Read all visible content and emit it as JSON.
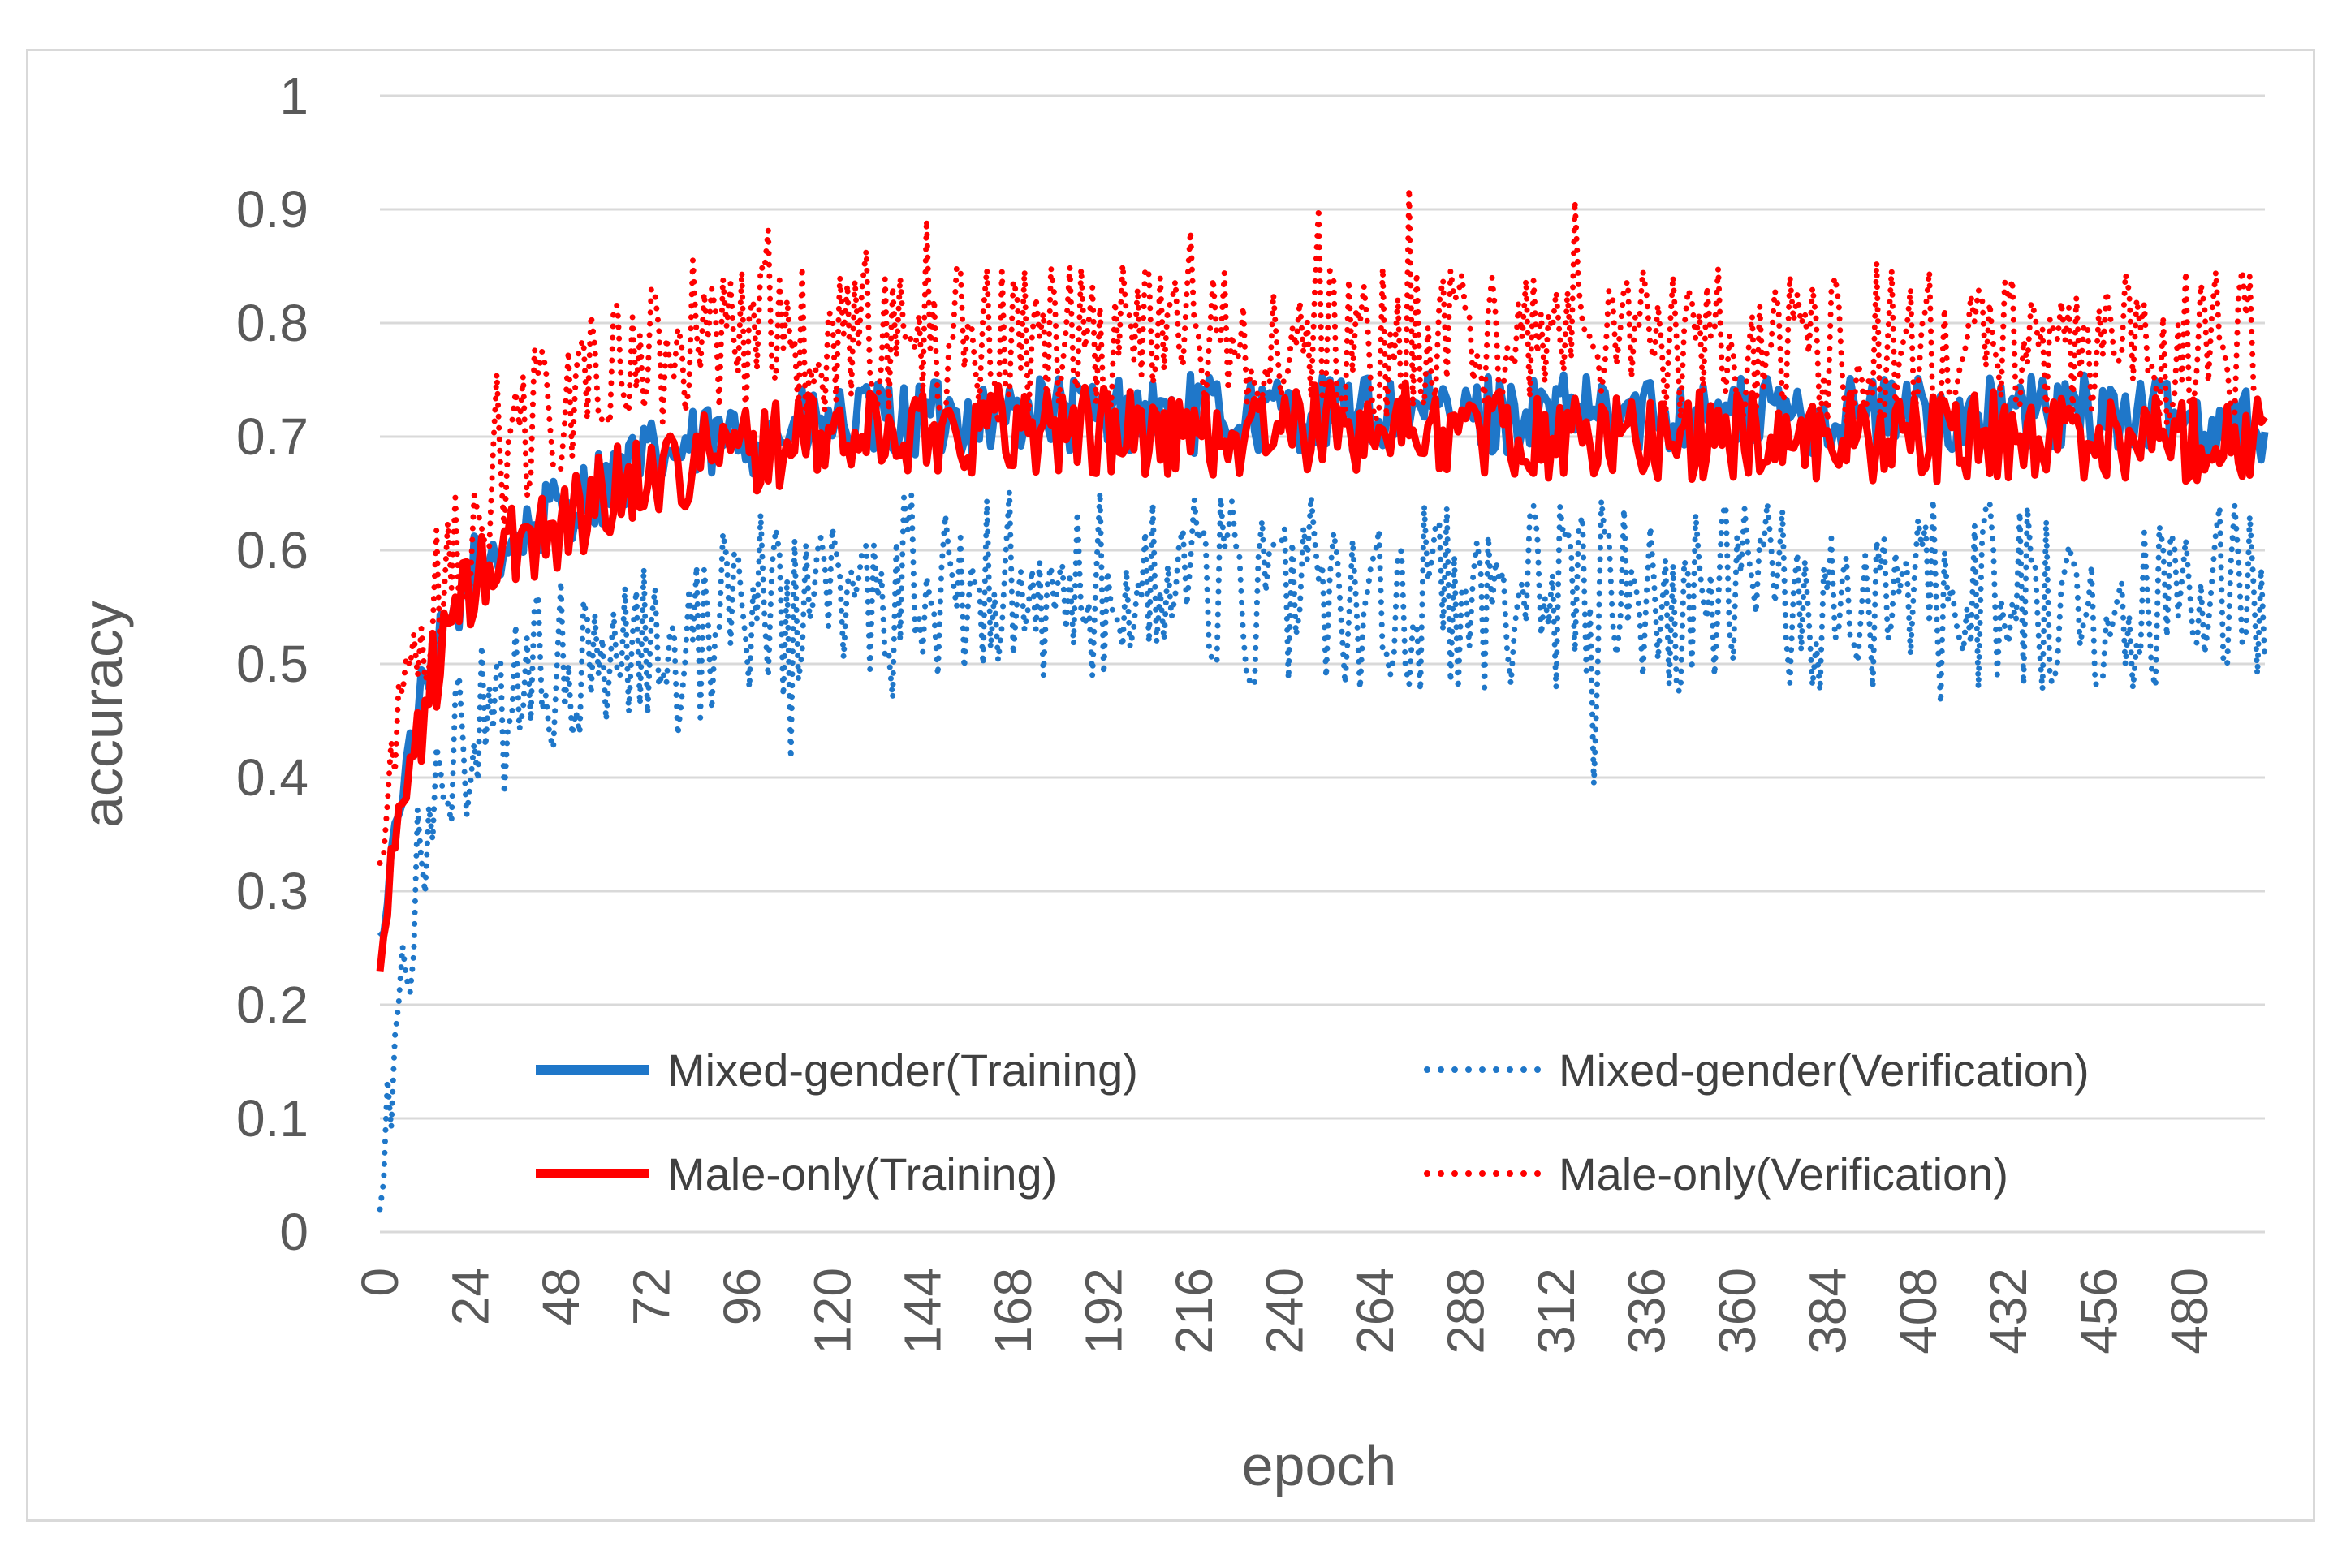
{
  "chart_data": {
    "type": "line",
    "title": "",
    "xlabel": "epoch",
    "ylabel": "accuracy",
    "xlim": [
      0,
      500
    ],
    "ylim": [
      0,
      1
    ],
    "grid": true,
    "legend_position": "lower-center",
    "x_ticks": [
      0,
      24,
      48,
      72,
      96,
      120,
      144,
      168,
      192,
      216,
      240,
      264,
      288,
      312,
      336,
      360,
      384,
      408,
      432,
      456,
      480
    ],
    "y_ticks": [
      0,
      0.1,
      0.2,
      0.3,
      0.4,
      0.5,
      0.6,
      0.7,
      0.8,
      0.9,
      1
    ],
    "y_tick_labels": [
      "0",
      "0.1",
      "0.2",
      "0.3",
      "0.4",
      "0.5",
      "0.6",
      "0.7",
      "0.8",
      "0.9",
      "1"
    ],
    "series": [
      {
        "name": "Mixed-gender(Training)",
        "color": "#1f77c9",
        "style": "solid",
        "approx_values": {
          "0": 0.25,
          "5": 0.38,
          "10": 0.45,
          "15": 0.5,
          "20": 0.55,
          "25": 0.58,
          "30": 0.6,
          "40": 0.62,
          "50": 0.64,
          "60": 0.66,
          "72": 0.68,
          "96": 0.7,
          "120": 0.71,
          "168": 0.72,
          "216": 0.72,
          "264": 0.72,
          "312": 0.72,
          "360": 0.72,
          "408": 0.72,
          "456": 0.72,
          "500": 0.71
        }
      },
      {
        "name": "Mixed-gender(Verification)",
        "color": "#1f77c9",
        "style": "dotted",
        "approx_values": {
          "0": 0.05,
          "5": 0.2,
          "10": 0.3,
          "15": 0.35,
          "20": 0.4,
          "30": 0.45,
          "40": 0.48,
          "60": 0.5,
          "80": 0.53,
          "96": 0.55,
          "120": 0.56,
          "168": 0.57,
          "216": 0.57,
          "264": 0.56,
          "312": 0.56,
          "360": 0.56,
          "408": 0.56,
          "456": 0.56,
          "500": 0.57
        }
      },
      {
        "name": "Male-only(Training)",
        "color": "#ff0000",
        "style": "solid",
        "approx_values": {
          "0": 0.23,
          "5": 0.37,
          "10": 0.44,
          "15": 0.5,
          "20": 0.54,
          "25": 0.57,
          "30": 0.59,
          "40": 0.61,
          "50": 0.63,
          "60": 0.65,
          "72": 0.67,
          "96": 0.69,
          "120": 0.7,
          "168": 0.71,
          "216": 0.7,
          "264": 0.71,
          "312": 0.7,
          "360": 0.7,
          "408": 0.7,
          "456": 0.7,
          "500": 0.7
        }
      },
      {
        "name": "Male-only(Verification)",
        "color": "#ff0000",
        "style": "dotted",
        "approx_values": {
          "0": 0.3,
          "5": 0.45,
          "10": 0.52,
          "15": 0.56,
          "20": 0.6,
          "30": 0.66,
          "40": 0.72,
          "60": 0.76,
          "80": 0.77,
          "96": 0.78,
          "120": 0.78,
          "168": 0.78,
          "216": 0.78,
          "264": 0.78,
          "312": 0.78,
          "360": 0.78,
          "408": 0.78,
          "456": 0.78,
          "500": 0.78
        }
      }
    ]
  }
}
